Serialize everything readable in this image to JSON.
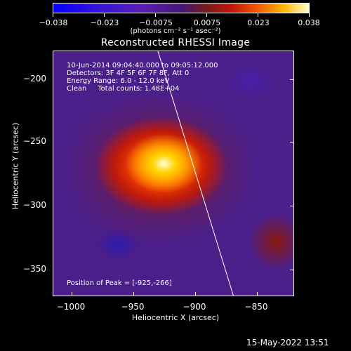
{
  "colorbar": {
    "ticks": [
      "−0.038",
      "−0.023",
      "−0.0075",
      "0.0075",
      "0.023",
      "0.038"
    ],
    "units": "(photons cm⁻² s⁻¹ asec⁻²)"
  },
  "title": "Reconstructed RHESSI Image",
  "info": {
    "line1": "10-Jun-2014 09:04:40.000 to 09:05:12.000",
    "line2": "Detectors: 3F 4F 5F 6F 7F 8F, Att 0",
    "line3": "Energy Range: 6.0 - 12.0 keV",
    "line4": "Clean     Total counts: 1.48E+04",
    "peak": "Position of Peak = [-925,-266]"
  },
  "axes": {
    "xlabel": "Heliocentric X (arcsec)",
    "ylabel": "Heliocentric Y (arcsec)",
    "xticks": [
      "−1000",
      "−950",
      "−900",
      "−850"
    ],
    "yticks": [
      "−200",
      "−250",
      "−300",
      "−350"
    ]
  },
  "timestamp": "15-May-2022 13:51",
  "colors": {
    "background": "#000000",
    "foreground": "#ffffff"
  }
}
